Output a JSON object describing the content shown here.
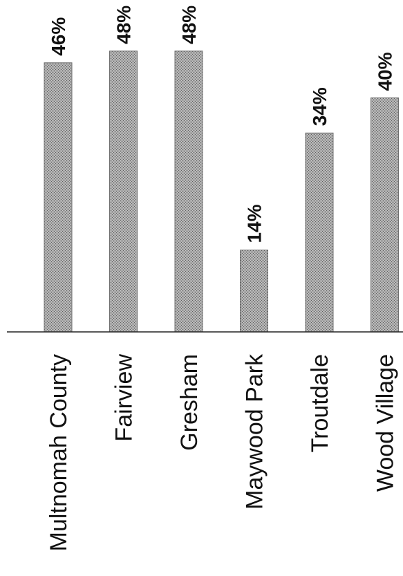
{
  "chart_data": {
    "type": "bar",
    "orientation": "vertical",
    "categories": [
      "Multnomah County",
      "Fairview",
      "Gresham",
      "Maywood Park",
      "Troutdale",
      "Wood Village"
    ],
    "values": [
      46,
      48,
      48,
      14,
      34,
      40
    ],
    "value_labels": [
      "46%",
      "48%",
      "48%",
      "14%",
      "34%",
      "40%"
    ],
    "unit": "%",
    "ylim": [
      0,
      52
    ],
    "grid": false,
    "legend": "none",
    "bar_color": "#9a9a9a",
    "bar_edge_color": "#6e6e6e"
  }
}
